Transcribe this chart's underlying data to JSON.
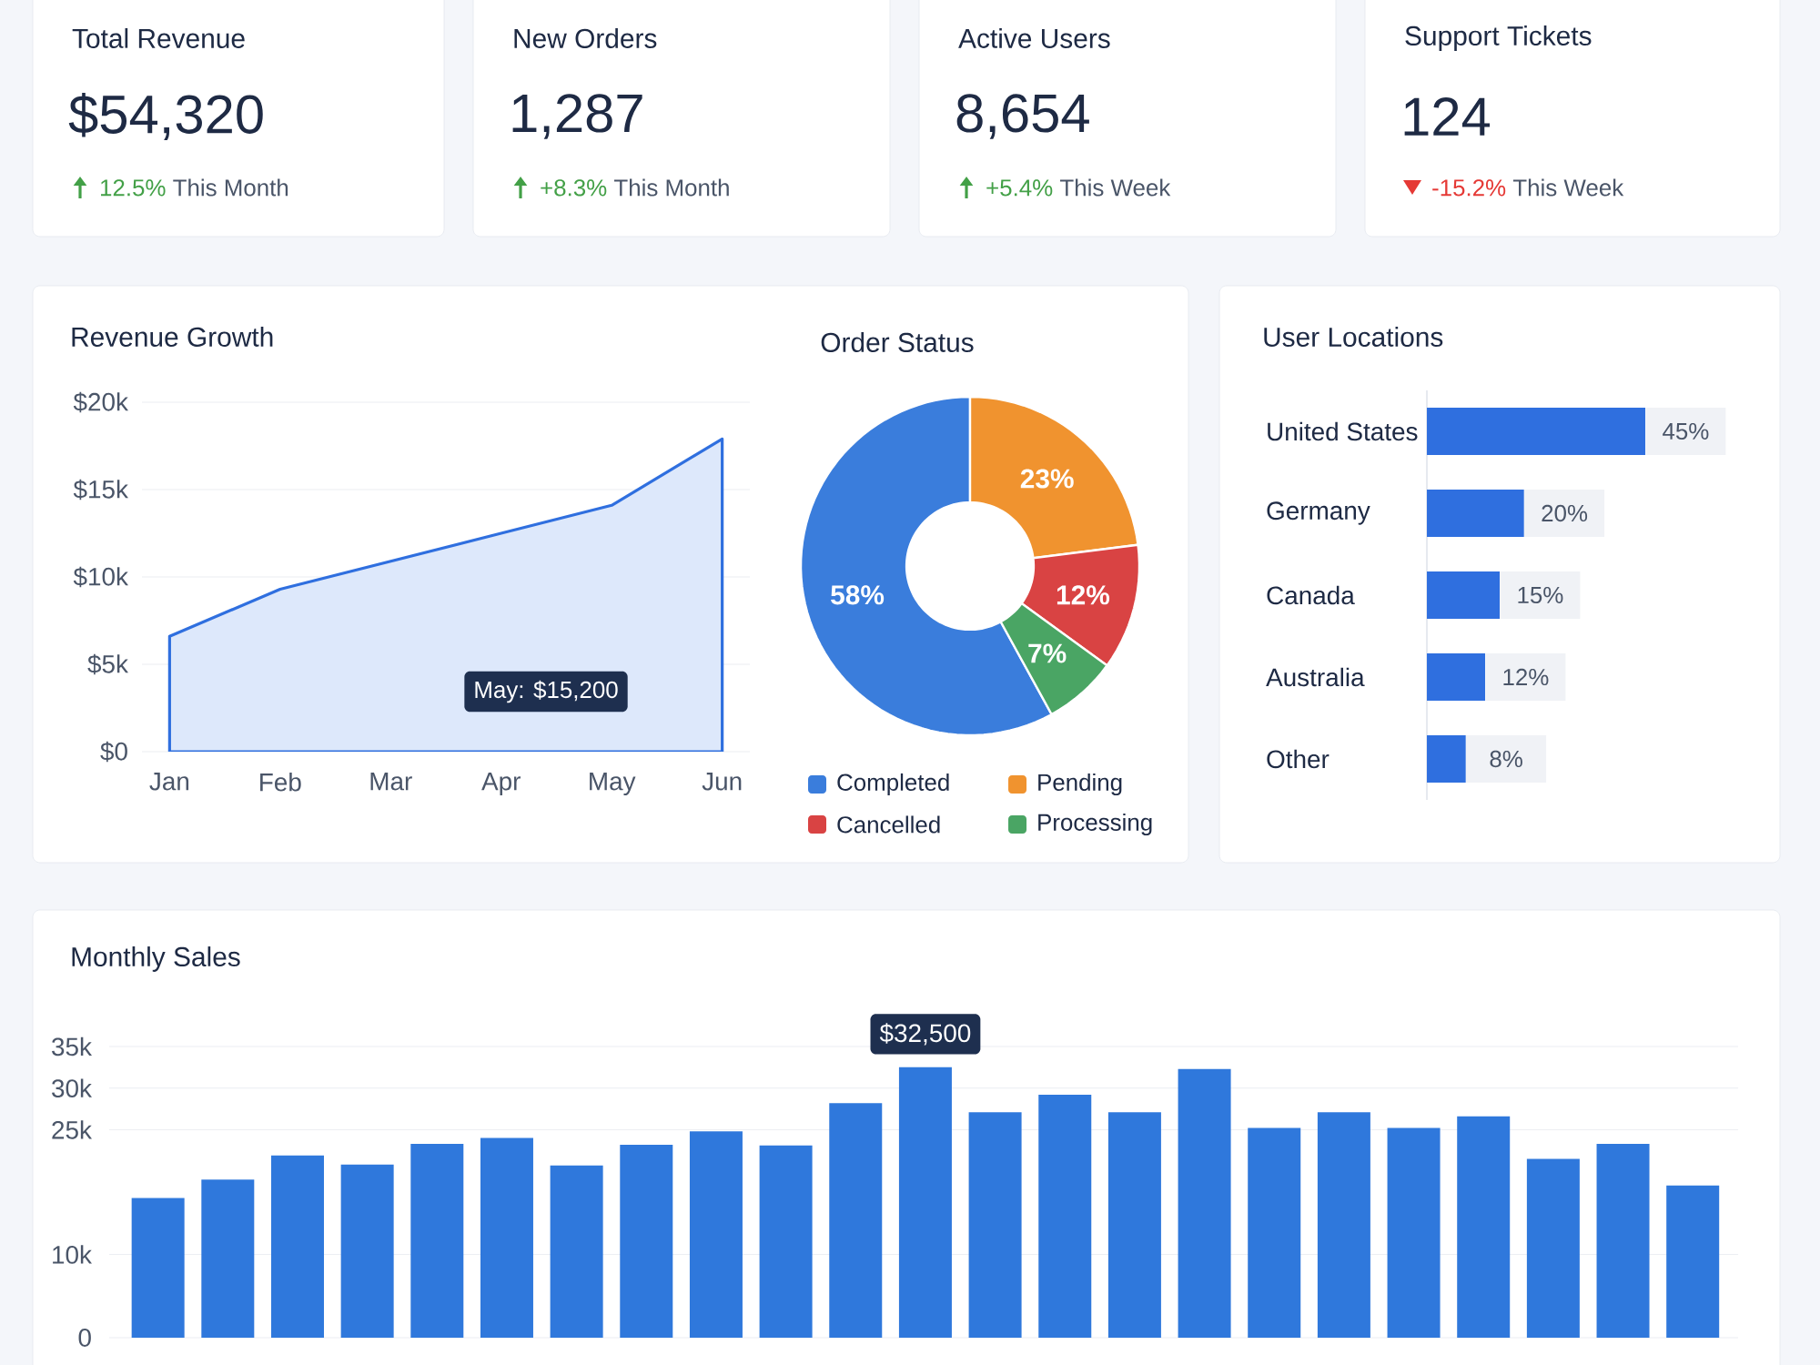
{
  "chart_data": [
    {
      "type": "other",
      "title": "Total Revenue",
      "annotations": [
        "$54,320",
        "This Month"
      ],
      "values": [
        12.5
      ],
      "value_labels": [
        "12.5%"
      ]
    },
    {
      "type": "other",
      "title": "New Orders",
      "annotations": [
        "1,287",
        "This Month"
      ],
      "values": [
        8.3
      ],
      "value_labels": [
        "+8.3%"
      ]
    },
    {
      "type": "other",
      "title": "Active Users",
      "annotations": [
        "8,654",
        "This Week"
      ],
      "values": [
        5.4
      ],
      "value_labels": [
        "+5.4%"
      ]
    },
    {
      "type": "other",
      "title": "Support Tickets",
      "annotations": [
        "124",
        "This Week"
      ],
      "values": [
        -15.2
      ],
      "value_labels": [
        "-15.2%"
      ]
    },
    {
      "type": "area",
      "title": "Revenue Growth",
      "categories": [
        "Jan",
        "Feb",
        "Mar",
        "Apr",
        "May",
        "Jun"
      ],
      "series": [
        {
          "color": "#dde8fb",
          "values": [
            6600,
            9300,
            10900,
            12500,
            14100,
            17900
          ]
        }
      ],
      "ylim": [
        0,
        20000
      ],
      "yticks": [
        {
          "value": 0,
          "label": "$0"
        },
        {
          "value": 5000,
          "label": "$5k"
        },
        {
          "value": 10000,
          "label": "$10k"
        },
        {
          "value": 15000,
          "label": "$15k"
        },
        {
          "value": 20000,
          "label": "$20k"
        }
      ],
      "grid": "y",
      "annotations": [
        "May: $15,200"
      ]
    },
    {
      "type": "donut",
      "title": "Order Status",
      "categories": [
        "Completed",
        "Pending",
        "Cancelled",
        "Processing"
      ],
      "values": [
        58,
        23,
        12,
        7
      ],
      "colors": [
        "#3a7ddc",
        "#f0932f",
        "#d94343",
        "#4aa564"
      ],
      "value_labels": [
        "58%",
        "23%",
        "12%",
        "7%"
      ],
      "legend": "bottom"
    },
    {
      "type": "bar",
      "orientation": "horizontal",
      "title": "User Locations",
      "categories": [
        "United States",
        "Germany",
        "Canada",
        "Australia",
        "Other"
      ],
      "values": [
        45,
        20,
        15,
        12,
        8
      ],
      "value_labels": [
        "45%",
        "20%",
        "15%",
        "12%",
        "8%"
      ],
      "color": "#2f6fdf"
    },
    {
      "type": "bar",
      "title": "Monthly Sales",
      "categories": [
        null,
        null,
        null,
        null,
        null,
        null,
        null,
        null,
        null,
        null,
        null,
        null,
        null,
        null,
        null,
        null,
        null,
        null,
        null,
        null,
        null,
        null,
        null
      ],
      "values": [
        16800,
        19000,
        21900,
        20800,
        23300,
        24000,
        20700,
        23200,
        24800,
        23100,
        28200,
        32500,
        27100,
        29200,
        27100,
        32300,
        25200,
        27100,
        25200,
        26600,
        21500,
        23300,
        18300
      ],
      "color": "#2f78dc",
      "ylim": [
        0,
        35000
      ],
      "yticks": [
        {
          "value": 0,
          "label": "0"
        },
        {
          "value": 10000,
          "label": "10k"
        },
        {
          "value": 25000,
          "label": "25k"
        },
        {
          "value": 30000,
          "label": "30k"
        },
        {
          "value": 35000,
          "label": "35k"
        }
      ],
      "grid": "y",
      "annotations": [
        {
          "text": "$32,500",
          "y": 32500
        }
      ]
    }
  ]
}
